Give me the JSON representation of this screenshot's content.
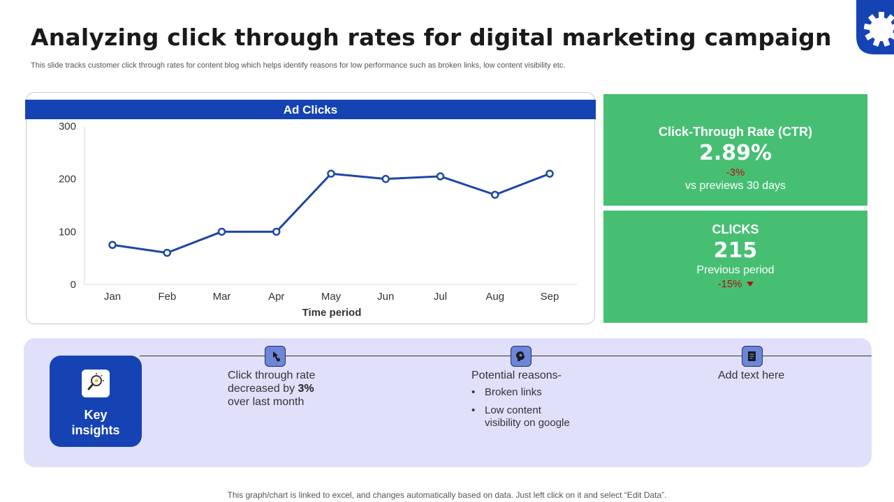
{
  "header": {
    "title": "Analyzing click through rates for digital marketing campaign",
    "subtitle": "This slide tracks customer click through rates for content blog which helps identify reasons for low performance such as broken links, low content visibility etc."
  },
  "chart_data": {
    "type": "line",
    "title": "Ad Clicks",
    "xlabel": "Time period",
    "ylabel": "",
    "categories": [
      "Jan",
      "Feb",
      "Mar",
      "Apr",
      "May",
      "Jun",
      "Jul",
      "Aug",
      "Sep"
    ],
    "series": [
      {
        "name": "Ad Clicks",
        "values": [
          75,
          60,
          100,
          100,
          210,
          200,
          205,
          170,
          210
        ]
      }
    ],
    "ylim": [
      0,
      300
    ],
    "yticks": [
      0,
      100,
      200,
      300
    ],
    "grid": false,
    "legend": "none",
    "color": "#1d46a8"
  },
  "kpis": {
    "ctr": {
      "label": "Click-Through Rate (CTR)",
      "value": "2.89%",
      "change": "-3%",
      "note": "vs previews 30 days"
    },
    "clicks": {
      "label": "CLICKS",
      "value": "215",
      "note": "Previous period",
      "change": "-15%"
    }
  },
  "insights": {
    "key_label_line1": "Key",
    "key_label_line2": "insights",
    "item1": {
      "line1": "Click through rate",
      "line2_prefix": "decreased by ",
      "line2_bold": "3%",
      "line3": "over last month"
    },
    "item2": {
      "heading": "Potential reasons-",
      "bullets": [
        "Broken links",
        "Low content",
        "visibility on google"
      ]
    },
    "item3": {
      "text": "Add text here"
    }
  },
  "footer": "This graph/chart is linked to excel, and changes automatically based on data. Just left click on it and select “Edit Data”.",
  "colors": {
    "brand_blue": "#1543b4",
    "kpi_green": "#46bf73",
    "negative_red": "#b01010",
    "panel_lavender": "#e1e0fb"
  }
}
